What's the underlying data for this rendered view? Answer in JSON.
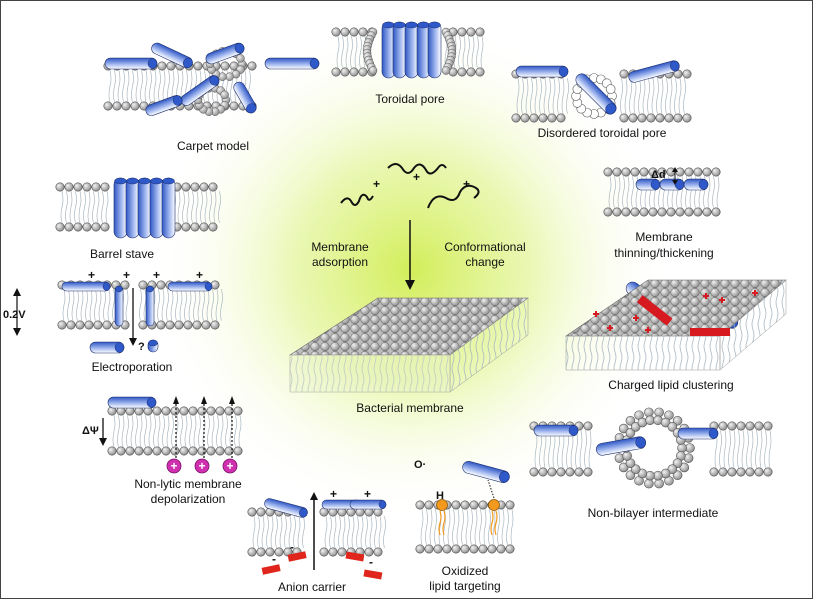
{
  "panels": {
    "carpet_model": "Carpet model",
    "toroidal_pore": "Toroidal pore",
    "disordered_toroidal_pore": "Disordered toroidal pore",
    "barrel_stave": "Barrel stave",
    "membrane_thinning": [
      "Membrane",
      "thinning/thickening"
    ],
    "electroporation": "Electroporation",
    "charged_lipid_clustering": "Charged lipid clustering",
    "non_lytic_depolarization": [
      "Non-lytic membrane",
      "depolarization"
    ],
    "non_bilayer_intermediate": "Non-bilayer intermediate",
    "anion_carrier": "Anion carrier",
    "oxidized_lipid_targeting": [
      "Oxidized",
      "lipid targeting"
    ],
    "bacterial_membrane": "Bacterial membrane"
  },
  "center": {
    "membrane_adsorption": [
      "Membrane",
      "adsorption"
    ],
    "conformational_change": [
      "Conformational",
      "change"
    ]
  },
  "symbols": {
    "plus": "+",
    "minus": "-",
    "voltage": "0.2V",
    "delta_psi": "ΔΨ",
    "delta_d": "Δd",
    "question": "?",
    "radical_o": "O·",
    "hydrogen": "H"
  },
  "colors": {
    "background_glow": "#d8ef6a",
    "peptide_blue": "#3a63c9",
    "lipid_head": "#9a9a9a",
    "tail": "#bcc7cf",
    "charge_magenta": "#d02fb0",
    "anion_red": "#e0261c",
    "oxidized_orange": "#f39a1e"
  }
}
